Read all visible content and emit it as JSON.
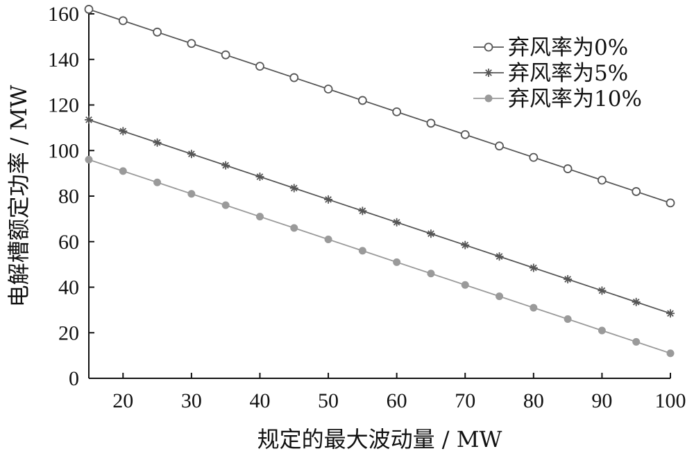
{
  "chart_data": {
    "type": "line",
    "title": "",
    "xlabel": "规定的最大波动量 / MW",
    "ylabel": "电解槽额定功率 / MW",
    "xlim": [
      15,
      100
    ],
    "ylim": [
      0,
      160
    ],
    "x_ticks": [
      20,
      30,
      40,
      50,
      60,
      70,
      80,
      90,
      100
    ],
    "y_ticks": [
      0,
      20,
      40,
      60,
      80,
      100,
      120,
      140,
      160
    ],
    "grid": false,
    "legend_position": "top-right",
    "x": [
      15,
      20,
      25,
      30,
      35,
      40,
      45,
      50,
      55,
      60,
      65,
      70,
      75,
      80,
      85,
      90,
      95,
      100
    ],
    "series": [
      {
        "name": "弃风率为0%",
        "marker": "open-circle",
        "color": "#555555",
        "values": [
          162,
          157,
          152,
          147,
          142,
          137,
          132,
          127,
          122,
          117,
          112,
          107,
          102,
          97,
          92,
          87,
          82,
          77
        ]
      },
      {
        "name": "弃风率为5%",
        "marker": "asterisk",
        "color": "#555555",
        "values": [
          113.5,
          108.5,
          103.5,
          98.5,
          93.5,
          88.5,
          83.5,
          78.5,
          73.5,
          68.5,
          63.5,
          58.5,
          53.5,
          48.5,
          43.5,
          38.5,
          33.5,
          28.5
        ]
      },
      {
        "name": "弃风率为10%",
        "marker": "filled-circle",
        "color": "#9a9a9a",
        "values": [
          96,
          91,
          86,
          81,
          76,
          71,
          66,
          61,
          56,
          51,
          46,
          41,
          36,
          31,
          26,
          21,
          16,
          11
        ]
      }
    ]
  }
}
